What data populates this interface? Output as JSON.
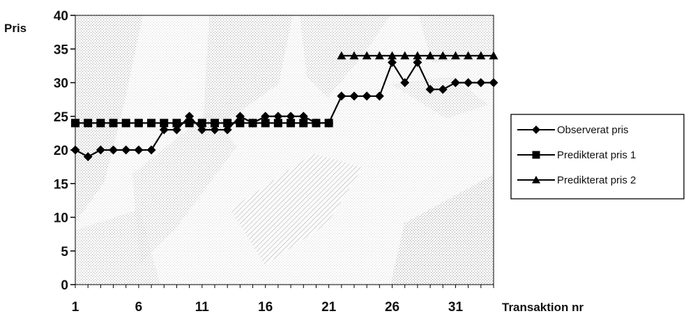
{
  "chart_data": {
    "type": "line",
    "title": "",
    "xlabel": "Transaktion nr",
    "ylabel": "Pris",
    "x": [
      1,
      2,
      3,
      4,
      5,
      6,
      7,
      8,
      9,
      10,
      11,
      12,
      13,
      14,
      15,
      16,
      17,
      18,
      19,
      20,
      21,
      22,
      23,
      24,
      25,
      26,
      27,
      28,
      29,
      30,
      31,
      32,
      33,
      34
    ],
    "xticks": [
      1,
      6,
      11,
      16,
      21,
      26,
      31
    ],
    "yticks": [
      0,
      5,
      10,
      15,
      20,
      25,
      30,
      35,
      40
    ],
    "ylim": [
      0,
      40
    ],
    "grid": false,
    "legend_position": "right",
    "series": [
      {
        "name": "Observerat pris",
        "marker": "diamond",
        "values": [
          20,
          19,
          20,
          20,
          20,
          20,
          20,
          23,
          23,
          25,
          23,
          23,
          23,
          25,
          24,
          25,
          25,
          25,
          25,
          24,
          24,
          28,
          28,
          28,
          28,
          33,
          30,
          33,
          29,
          29,
          30,
          30,
          30,
          30
        ]
      },
      {
        "name": "Predikterat pris 1",
        "marker": "square",
        "values": [
          24,
          24,
          24,
          24,
          24,
          24,
          24,
          24,
          24,
          24,
          24,
          24,
          24,
          24,
          24,
          24,
          24,
          24,
          24,
          24,
          24,
          null,
          null,
          null,
          null,
          null,
          null,
          null,
          null,
          null,
          null,
          null,
          null,
          null
        ]
      },
      {
        "name": "Predikterat pris 2",
        "marker": "triangle",
        "values": [
          null,
          null,
          null,
          null,
          null,
          null,
          null,
          null,
          null,
          null,
          null,
          null,
          null,
          null,
          null,
          null,
          null,
          null,
          null,
          null,
          null,
          34,
          34,
          34,
          34,
          34,
          34,
          34,
          34,
          34,
          34,
          34,
          34,
          34
        ]
      }
    ]
  }
}
